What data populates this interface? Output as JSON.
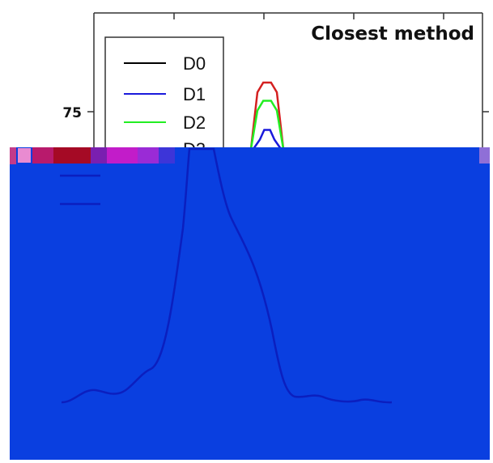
{
  "chart_data": {
    "type": "line",
    "title": "Closest method",
    "xlabel": "",
    "ylabel": "",
    "legend_position": "top-left",
    "y_ticks": [
      {
        "label": "75",
        "value": 75
      }
    ],
    "series": [
      {
        "name": "D0",
        "color": "#000000"
      },
      {
        "name": "D1",
        "color": "#1a1adb"
      },
      {
        "name": "D2",
        "color": "#22ee22"
      },
      {
        "name": "D3",
        "color": "#d42020"
      }
    ],
    "peak_tops": [
      {
        "series": "D3",
        "y": 79.8
      },
      {
        "series": "D2",
        "y": 76.8
      },
      {
        "series": "D1",
        "y": 72.0
      }
    ],
    "occluded_overlay": {
      "fill_color": "#0a3fe0",
      "line_color": "#0b1fbf"
    }
  }
}
